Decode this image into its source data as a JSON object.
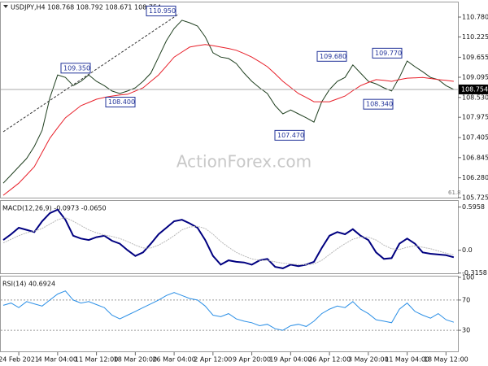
{
  "chart_data": [
    {
      "type": "line",
      "title": "USDJPY,H4 108.768 108.792 108.671 108.754",
      "watermark": "ActionForex.com",
      "fib_label": 61.8,
      "current_price": 108.754,
      "categories": [
        null,
        null,
        "24 Feb 2021",
        null,
        null,
        null,
        null,
        "4 Mar 04:00",
        null,
        null,
        null,
        null,
        "11 Mar 12:00",
        null,
        null,
        null,
        null,
        "18 Mar 20:00",
        null,
        null,
        null,
        null,
        "26 Mar 04:00",
        null,
        null,
        null,
        null,
        "2 Apr 12:00",
        null,
        null,
        null,
        null,
        "9 Apr 20:00",
        null,
        null,
        null,
        null,
        "19 Apr 04:00",
        null,
        null,
        null,
        null,
        "26 Apr 12:00",
        null,
        null,
        null,
        null,
        "3 May 20:00",
        null,
        null,
        null,
        null,
        "11 May 04:00",
        null,
        null,
        null,
        null,
        "18 May 12:00",
        null
      ],
      "series": [
        {
          "color": "#1f3f1f",
          "values": [
            106.13,
            106.36,
            106.59,
            106.82,
            107.16,
            107.61,
            108.52,
            109.16,
            109.09,
            108.86,
            108.98,
            109.16,
            108.98,
            108.86,
            108.71,
            108.64,
            108.71,
            108.8,
            108.98,
            109.21,
            109.66,
            110.12,
            110.46,
            110.69,
            110.62,
            110.53,
            110.23,
            109.78,
            109.66,
            109.62,
            109.48,
            109.21,
            108.98,
            108.8,
            108.64,
            108.3,
            108.07,
            108.18,
            108.07,
            107.96,
            107.84,
            108.41,
            108.75,
            108.98,
            109.09,
            109.44,
            109.21,
            108.98,
            108.91,
            108.8,
            108.71,
            109.09,
            109.55,
            109.39,
            109.25,
            109.09,
            109.03,
            108.86,
            108.754
          ]
        },
        {
          "color": "#e8202a",
          "values": [
            105.79,
            105.96,
            106.13,
            106.36,
            106.59,
            106.99,
            107.39,
            107.68,
            107.96,
            108.13,
            108.3,
            108.39,
            108.48,
            108.53,
            108.57,
            108.6,
            108.62,
            108.71,
            108.8,
            108.98,
            109.16,
            109.41,
            109.66,
            109.8,
            109.94,
            109.98,
            110.01,
            109.98,
            109.94,
            109.9,
            109.85,
            109.76,
            109.66,
            109.53,
            109.39,
            109.19,
            108.98,
            108.81,
            108.64,
            108.53,
            108.41,
            108.41,
            108.41,
            108.49,
            108.57,
            108.72,
            108.86,
            108.95,
            109.03,
            109.01,
            108.98,
            109.03,
            109.07,
            109.08,
            109.09,
            109.06,
            109.03,
            109.01,
            108.98
          ]
        }
      ],
      "annotations": [
        {
          "value": 110.95,
          "label": "110.950"
        },
        {
          "value": 109.35,
          "label": "109.350"
        },
        {
          "value": 108.4,
          "label": "108.400"
        },
        {
          "value": 107.47,
          "label": "107.470"
        },
        {
          "value": 109.68,
          "label": "109.680"
        },
        {
          "value": 109.77,
          "label": "109.770"
        },
        {
          "value": 108.34,
          "label": "108.340"
        }
      ],
      "ylim": [
        105.725,
        111.167
      ],
      "yticks": [
        {
          "value": 110.78,
          "label": "110.780"
        },
        110.225,
        109.655,
        109.095,
        {
          "value": 108.53,
          "label": "108.530"
        },
        107.975,
        107.405,
        106.845,
        {
          "value": 106.28,
          "label": "106.280"
        },
        105.725
      ]
    },
    {
      "type": "line",
      "title": "MACD(12,26,9) -0.0973 -0.0650",
      "series": [
        {
          "color": "#000080",
          "values": [
            0.14,
            0.22,
            0.31,
            0.28,
            0.25,
            0.4,
            0.51,
            0.56,
            0.42,
            0.2,
            0.16,
            0.14,
            0.18,
            0.2,
            0.13,
            0.09,
            0.0,
            -0.08,
            -0.03,
            0.09,
            0.22,
            0.31,
            0.4,
            0.42,
            0.37,
            0.31,
            0.14,
            -0.08,
            -0.2,
            -0.14,
            -0.16,
            -0.17,
            -0.2,
            -0.14,
            -0.12,
            -0.23,
            -0.25,
            -0.2,
            -0.22,
            -0.2,
            -0.16,
            0.03,
            0.2,
            0.25,
            0.22,
            0.29,
            0.2,
            0.14,
            -0.03,
            -0.12,
            -0.11,
            0.09,
            0.16,
            0.09,
            -0.03,
            -0.05,
            -0.06,
            -0.07,
            -0.0973
          ]
        },
        {
          "color": "#b8b8b8",
          "values": [
            0.1,
            0.15,
            0.2,
            0.24,
            0.26,
            0.3,
            0.36,
            0.42,
            0.45,
            0.4,
            0.34,
            0.28,
            0.24,
            0.21,
            0.19,
            0.16,
            0.12,
            0.07,
            0.03,
            0.03,
            0.07,
            0.13,
            0.2,
            0.28,
            0.32,
            0.33,
            0.3,
            0.22,
            0.12,
            0.04,
            -0.03,
            -0.08,
            -0.12,
            -0.14,
            -0.14,
            -0.16,
            -0.18,
            -0.19,
            -0.2,
            -0.2,
            -0.19,
            -0.14,
            -0.06,
            0.02,
            0.09,
            0.15,
            0.18,
            0.18,
            0.14,
            0.07,
            0.02,
            0.01,
            0.04,
            0.06,
            0.04,
            0.02,
            -0.01,
            -0.04,
            -0.065
          ]
        }
      ],
      "ylim": [
        -0.33,
        0.68
      ],
      "yticks": [
        0.5958,
        {
          "value": 0,
          "label": "0.0"
        },
        -0.3158
      ]
    },
    {
      "type": "line",
      "title": "RSI(14) 40.6924",
      "series": [
        {
          "color": "#2b8fe6",
          "values": [
            63,
            66,
            60,
            68,
            65,
            62,
            70,
            78,
            82,
            70,
            66,
            68,
            64,
            60,
            50,
            45,
            50,
            55,
            60,
            65,
            70,
            76,
            80,
            76,
            72,
            70,
            62,
            50,
            48,
            52,
            45,
            42,
            40,
            36,
            38,
            32,
            30,
            36,
            38,
            35,
            42,
            52,
            58,
            62,
            60,
            68,
            58,
            52,
            44,
            42,
            40,
            58,
            66,
            55,
            50,
            46,
            52,
            44,
            40.6924
          ]
        }
      ],
      "ylim": [
        0,
        100
      ],
      "yticks": [
        100,
        70,
        30
      ]
    }
  ]
}
